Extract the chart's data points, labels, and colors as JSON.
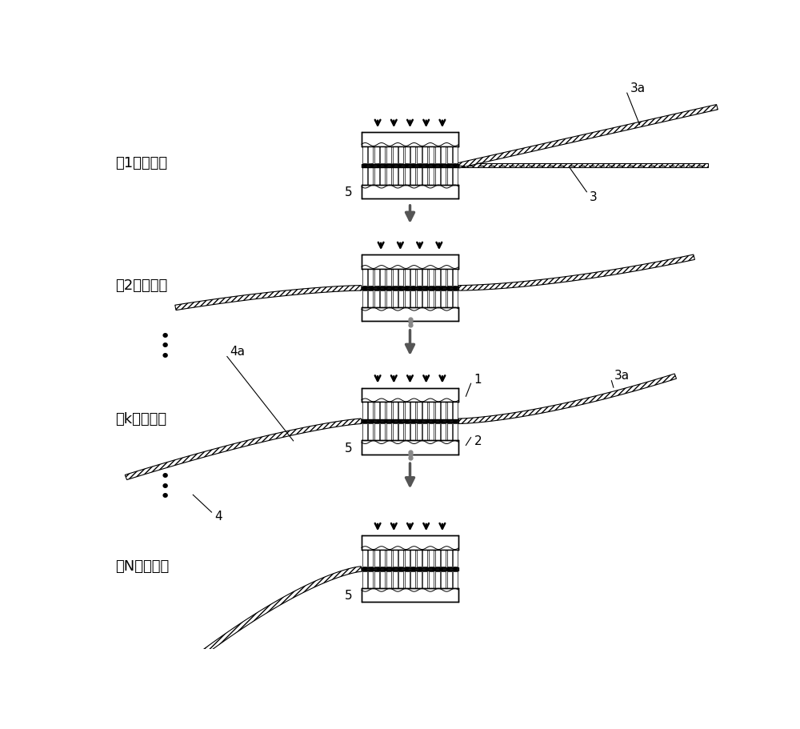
{
  "bg_color": "#ffffff",
  "text_color": "#000000",
  "label_stage1": "第1段成形：",
  "label_stage2": "第2段成形：",
  "label_stagek": "第k段成形：",
  "label_stageN": "第N段成形：",
  "label_1": "1",
  "label_2": "2",
  "label_3": "3",
  "label_3a_top": "3a",
  "label_3a_mid": "3a",
  "label_4": "4",
  "label_4a": "4a",
  "label_5_s1": "5",
  "label_5_sk": "5",
  "label_5_sN": "5",
  "font_size_label": 13,
  "font_size_number": 11
}
